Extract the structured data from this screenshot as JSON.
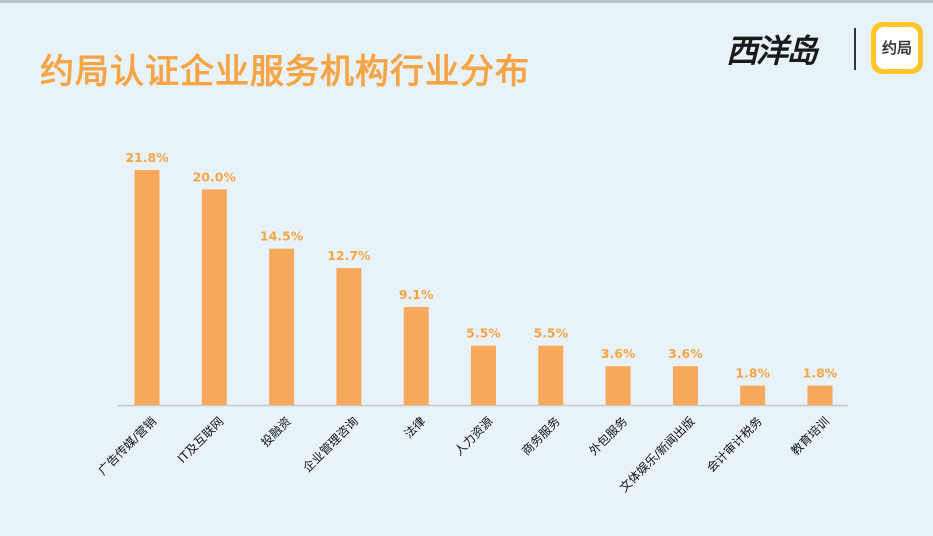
{
  "title": "约局认证企业服务机构行业分布",
  "brand": {
    "wordmark": "西洋岛",
    "app_logo_text": "约局"
  },
  "colors": {
    "background": "#e8f3f9",
    "bar": "#f8a85a",
    "label": "#f5a545",
    "title": "#f5a545",
    "axis": "#c8c8c8",
    "category_text": "#111111",
    "logo_yellow": "#ffc72c"
  },
  "chart_data": {
    "type": "bar",
    "categories": [
      "广告传媒/营销",
      "IT及互联网",
      "投融资",
      "企业管理咨询",
      "法律",
      "人力资源",
      "商务服务",
      "外包服务",
      "文体娱乐/新闻出版",
      "会计审计税务",
      "教育培训"
    ],
    "values": [
      21.8,
      20.0,
      14.5,
      12.7,
      9.1,
      5.5,
      5.5,
      3.6,
      3.6,
      1.8,
      1.8
    ],
    "value_labels": [
      "21.8%",
      "20.0%",
      "14.5%",
      "12.7%",
      "9.1%",
      "5.5%",
      "5.5%",
      "3.6%",
      "3.6%",
      "1.8%",
      "1.8%"
    ],
    "unit": "%",
    "ylim": [
      0,
      21.8
    ],
    "grid": false,
    "legend": "none"
  }
}
